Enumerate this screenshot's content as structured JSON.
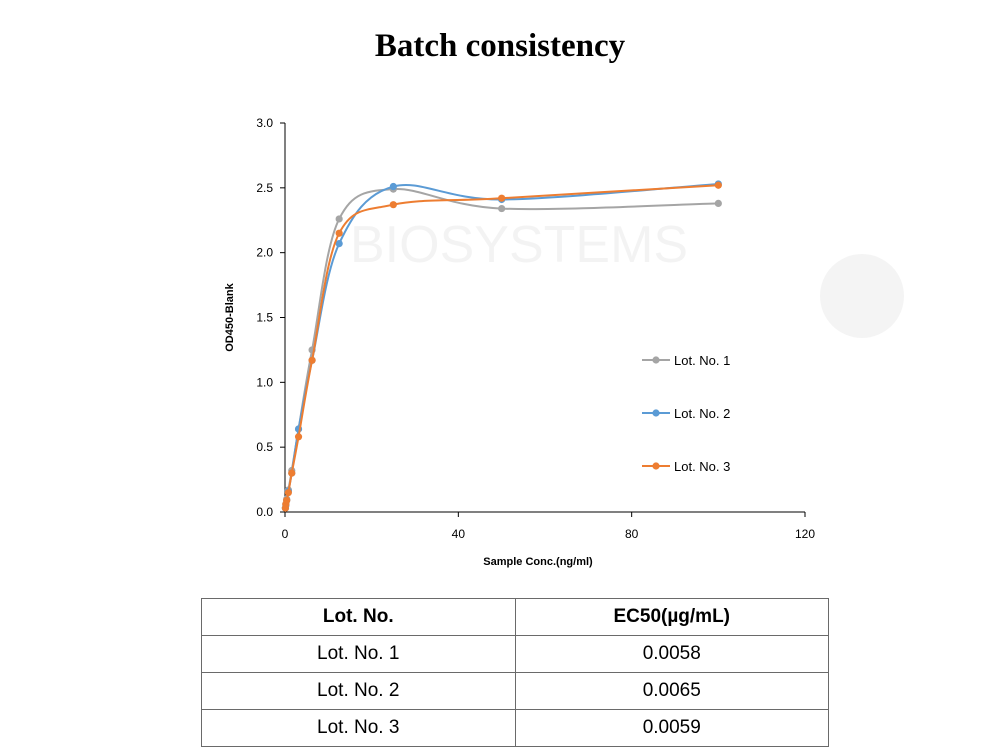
{
  "title": "Batch consistency",
  "chart_data": {
    "type": "line",
    "title": "Batch consistency",
    "xlabel": "Sample Conc.(ng/ml)",
    "ylabel": "OD450-Blank",
    "xlim": [
      0,
      120
    ],
    "ylim": [
      0,
      3.0
    ],
    "xticks": [
      "0",
      "40",
      "80",
      "120"
    ],
    "yticks": [
      "0.0",
      "0.5",
      "1.0",
      "1.5",
      "2.0",
      "2.5",
      "3.0"
    ],
    "grid": false,
    "legend_position": "right",
    "x": [
      0.0977,
      0.195,
      0.391,
      0.781,
      1.5625,
      3.125,
      6.25,
      12.5,
      25,
      50,
      100
    ],
    "series": [
      {
        "name": "Lot. No. 1",
        "color": "#a5a5a5",
        "values": [
          0.03,
          0.06,
          0.1,
          0.17,
          0.32,
          0.64,
          1.25,
          2.26,
          2.49,
          2.34,
          2.38
        ]
      },
      {
        "name": "Lot. No. 2",
        "color": "#5b9bd5",
        "values": [
          0.03,
          0.05,
          0.09,
          0.16,
          0.3,
          0.64,
          1.17,
          2.07,
          2.51,
          2.41,
          2.53
        ]
      },
      {
        "name": "Lot. No. 3",
        "color": "#ed7d31",
        "values": [
          0.03,
          0.06,
          0.09,
          0.15,
          0.3,
          0.58,
          1.17,
          2.15,
          2.37,
          2.42,
          2.52
        ]
      }
    ]
  },
  "table": {
    "headers": [
      "Lot. No.",
      "EC50(µg/mL)"
    ],
    "rows": [
      [
        "Lot. No. 1",
        "0.0058"
      ],
      [
        "Lot. No. 2",
        "0.0065"
      ],
      [
        "Lot. No. 3",
        "0.0059"
      ]
    ]
  }
}
